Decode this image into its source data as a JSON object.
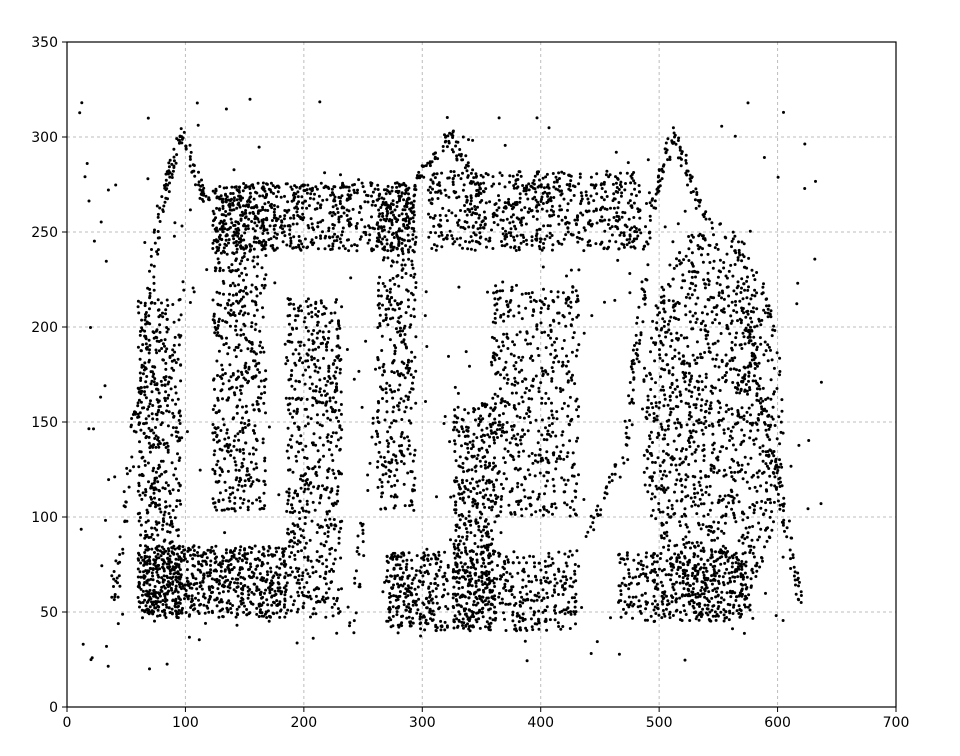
{
  "chart_data": {
    "type": "scatter",
    "title": "",
    "xlabel": "",
    "ylabel": "",
    "xlim": [
      0,
      700
    ],
    "ylim": [
      0,
      350
    ],
    "x_ticks": [
      0,
      100,
      200,
      300,
      400,
      500,
      600,
      700
    ],
    "y_ticks": [
      0,
      50,
      100,
      150,
      200,
      250,
      300,
      350
    ],
    "x_tick_labels": [
      "0",
      "100",
      "200",
      "300",
      "400",
      "500",
      "600",
      "700"
    ],
    "y_tick_labels": [
      "0",
      "50",
      "100",
      "150",
      "200",
      "250",
      "300",
      "350"
    ],
    "grid": true,
    "marker_color": "#000000",
    "grid_color": "#bdbdbd",
    "point_count_approx": 7500,
    "regions": [
      {
        "shape": "rect",
        "x": [
          60,
          97
        ],
        "y": [
          47,
          215
        ],
        "count": 520
      },
      {
        "shape": "rect",
        "x": [
          60,
          185
        ],
        "y": [
          47,
          85
        ],
        "count": 700
      },
      {
        "shape": "rect",
        "x": [
          123,
          168
        ],
        "y": [
          103,
          275
        ],
        "count": 560
      },
      {
        "shape": "rect",
        "x": [
          123,
          295
        ],
        "y": [
          240,
          276
        ],
        "count": 650
      },
      {
        "shape": "rect",
        "x": [
          185,
          232
        ],
        "y": [
          47,
          215
        ],
        "count": 560
      },
      {
        "shape": "rect",
        "x": [
          262,
          295
        ],
        "y": [
          103,
          275
        ],
        "count": 380
      },
      {
        "shape": "rect",
        "x": [
          268,
          290
        ],
        "y": [
          45,
          80
        ],
        "count": 40
      },
      {
        "shape": "rect",
        "x": [
          270,
          322
        ],
        "y": [
          40,
          82
        ],
        "count": 240
      },
      {
        "shape": "rect",
        "x": [
          305,
          485
        ],
        "y": [
          240,
          282
        ],
        "count": 650
      },
      {
        "shape": "rect",
        "x": [
          326,
          362
        ],
        "y": [
          40,
          160
        ],
        "count": 430
      },
      {
        "shape": "rect",
        "x": [
          326,
          430
        ],
        "y": [
          40,
          82
        ],
        "count": 340
      },
      {
        "shape": "rect",
        "x": [
          358,
          432
        ],
        "y": [
          100,
          222
        ],
        "count": 500
      },
      {
        "shape": "rect",
        "x": [
          465,
          580
        ],
        "y": [
          45,
          82
        ],
        "count": 380
      },
      {
        "shape": "ellipse",
        "cx": 545,
        "cy": 150,
        "rx": 60,
        "ry": 105,
        "count": 1250
      },
      {
        "shape": "line",
        "x": [
          40,
          78
        ],
        "y": [
          55,
          260
        ],
        "count": 90
      },
      {
        "shape": "line",
        "x": [
          78,
          96
        ],
        "y": [
          260,
          302
        ],
        "count": 45
      },
      {
        "shape": "line",
        "x": [
          96,
          118
        ],
        "y": [
          302,
          265
        ],
        "count": 45
      },
      {
        "shape": "line",
        "x": [
          293,
          325
        ],
        "y": [
          275,
          302
        ],
        "count": 40
      },
      {
        "shape": "line",
        "x": [
          322,
          350
        ],
        "y": [
          302,
          270
        ],
        "count": 40
      },
      {
        "shape": "line",
        "x": [
          470,
          493
        ],
        "y": [
          125,
          260
        ],
        "count": 70
      },
      {
        "shape": "line",
        "x": [
          493,
          512
        ],
        "y": [
          260,
          302
        ],
        "count": 40
      },
      {
        "shape": "line",
        "x": [
          512,
          540
        ],
        "y": [
          302,
          255
        ],
        "count": 45
      },
      {
        "shape": "line",
        "x": [
          570,
          620
        ],
        "y": [
          215,
          55
        ],
        "count": 110
      },
      {
        "shape": "line",
        "x": [
          240,
          262
        ],
        "y": [
          40,
          160
        ],
        "count": 30
      },
      {
        "shape": "line",
        "x": [
          420,
          465
        ],
        "y": [
          60,
          130
        ],
        "count": 30
      },
      {
        "shape": "rect",
        "x": [
          10,
          640
        ],
        "y": [
          20,
          320
        ],
        "count": 300
      }
    ]
  }
}
